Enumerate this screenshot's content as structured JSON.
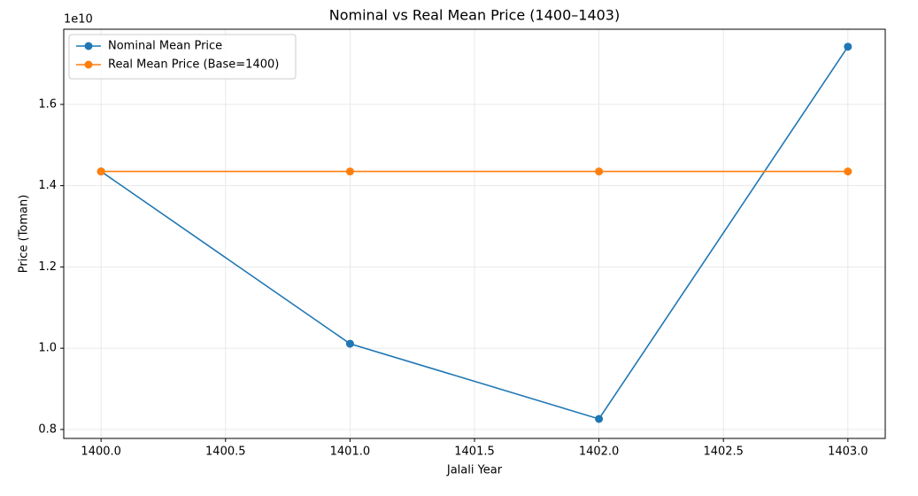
{
  "chart_data": {
    "type": "line",
    "title": "Nominal vs Real Mean Price (1400–1403)",
    "x_label": "Jalali Year",
    "y_label": "Price (Toman)",
    "y_offset_label": "1e10",
    "x": [
      1400,
      1401,
      1402,
      1403
    ],
    "series": [
      {
        "name": "Nominal Mean Price",
        "color": "#1f77b4",
        "values": [
          1.435,
          1.011,
          0.826,
          1.742
        ]
      },
      {
        "name": "Real Mean Price (Base=1400)",
        "color": "#ff7f0e",
        "values": [
          1.435,
          1.435,
          1.435,
          1.435
        ]
      }
    ],
    "xlim": [
      1399.85,
      1403.15
    ],
    "xticks": [
      {
        "value": 1400,
        "label": "1400.0"
      },
      1400.5,
      {
        "value": 1401,
        "label": "1401.0"
      },
      1401.5,
      {
        "value": 1402,
        "label": "1402.0"
      },
      1402.5,
      {
        "value": 1403,
        "label": "1403.0"
      }
    ],
    "ylim": [
      0.778,
      1.785
    ],
    "yticks": [
      0.8,
      {
        "value": 1,
        "label": "1.0"
      },
      1.2,
      1.4,
      1.6
    ],
    "grid": true,
    "legend": "upper left"
  }
}
